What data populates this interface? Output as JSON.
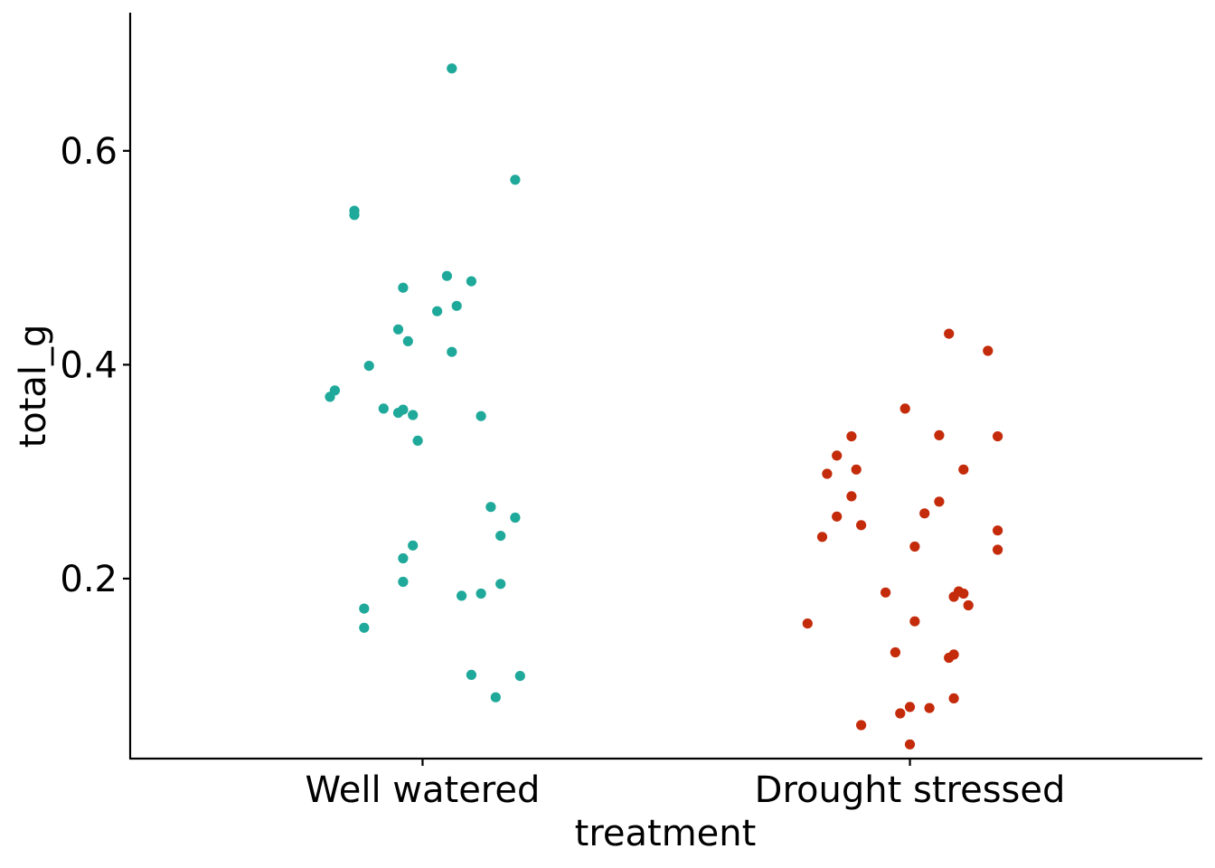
{
  "chart_data": {
    "type": "scatter",
    "title": "",
    "xlabel": "treatment",
    "ylabel": "total_g",
    "categories": [
      "Well watered",
      "Drought stressed"
    ],
    "ylim": [
      0.0317,
      0.7292
    ],
    "yticks": [
      0.2,
      0.4,
      0.6
    ],
    "ytick_labels": [
      "0.2",
      "0.4",
      "0.6"
    ],
    "grid": false,
    "legend": "none",
    "series": [
      {
        "name": "Well watered",
        "color": "#1FA99A",
        "points": [
          {
            "x": 1.06,
            "y": 0.677
          },
          {
            "x": 1.19,
            "y": 0.573
          },
          {
            "x": 0.86,
            "y": 0.544
          },
          {
            "x": 0.86,
            "y": 0.54
          },
          {
            "x": 1.05,
            "y": 0.483
          },
          {
            "x": 1.1,
            "y": 0.478
          },
          {
            "x": 0.96,
            "y": 0.472
          },
          {
            "x": 1.07,
            "y": 0.455
          },
          {
            "x": 1.03,
            "y": 0.45
          },
          {
            "x": 0.95,
            "y": 0.433
          },
          {
            "x": 0.97,
            "y": 0.422
          },
          {
            "x": 1.06,
            "y": 0.412
          },
          {
            "x": 0.89,
            "y": 0.399
          },
          {
            "x": 0.82,
            "y": 0.376
          },
          {
            "x": 0.81,
            "y": 0.37
          },
          {
            "x": 0.92,
            "y": 0.359
          },
          {
            "x": 0.96,
            "y": 0.358
          },
          {
            "x": 0.95,
            "y": 0.355
          },
          {
            "x": 0.98,
            "y": 0.353
          },
          {
            "x": 1.12,
            "y": 0.352
          },
          {
            "x": 0.99,
            "y": 0.329
          },
          {
            "x": 1.14,
            "y": 0.267
          },
          {
            "x": 1.19,
            "y": 0.257
          },
          {
            "x": 1.16,
            "y": 0.24
          },
          {
            "x": 0.98,
            "y": 0.231
          },
          {
            "x": 0.96,
            "y": 0.219
          },
          {
            "x": 0.96,
            "y": 0.197
          },
          {
            "x": 1.16,
            "y": 0.195
          },
          {
            "x": 1.12,
            "y": 0.186
          },
          {
            "x": 1.08,
            "y": 0.184
          },
          {
            "x": 0.88,
            "y": 0.172
          },
          {
            "x": 0.88,
            "y": 0.154
          },
          {
            "x": 1.1,
            "y": 0.11
          },
          {
            "x": 1.2,
            "y": 0.109
          },
          {
            "x": 1.15,
            "y": 0.089
          }
        ]
      },
      {
        "name": "Drought stressed",
        "color": "#C42B0B",
        "points": [
          {
            "x": 2.08,
            "y": 0.429
          },
          {
            "x": 2.16,
            "y": 0.413
          },
          {
            "x": 1.99,
            "y": 0.359
          },
          {
            "x": 2.06,
            "y": 0.334
          },
          {
            "x": 2.18,
            "y": 0.333
          },
          {
            "x": 1.88,
            "y": 0.333
          },
          {
            "x": 1.85,
            "y": 0.315
          },
          {
            "x": 2.11,
            "y": 0.302
          },
          {
            "x": 1.89,
            "y": 0.302
          },
          {
            "x": 1.83,
            "y": 0.298
          },
          {
            "x": 1.88,
            "y": 0.277
          },
          {
            "x": 2.06,
            "y": 0.272
          },
          {
            "x": 2.03,
            "y": 0.261
          },
          {
            "x": 1.85,
            "y": 0.258
          },
          {
            "x": 1.9,
            "y": 0.25
          },
          {
            "x": 2.18,
            "y": 0.245
          },
          {
            "x": 1.82,
            "y": 0.239
          },
          {
            "x": 2.01,
            "y": 0.23
          },
          {
            "x": 2.18,
            "y": 0.227
          },
          {
            "x": 2.1,
            "y": 0.188
          },
          {
            "x": 1.95,
            "y": 0.187
          },
          {
            "x": 2.11,
            "y": 0.186
          },
          {
            "x": 2.09,
            "y": 0.183
          },
          {
            "x": 2.12,
            "y": 0.175
          },
          {
            "x": 2.01,
            "y": 0.16
          },
          {
            "x": 1.79,
            "y": 0.158
          },
          {
            "x": 1.97,
            "y": 0.131
          },
          {
            "x": 2.09,
            "y": 0.129
          },
          {
            "x": 2.08,
            "y": 0.126
          },
          {
            "x": 2.09,
            "y": 0.088
          },
          {
            "x": 2.0,
            "y": 0.08
          },
          {
            "x": 2.04,
            "y": 0.079
          },
          {
            "x": 1.98,
            "y": 0.074
          },
          {
            "x": 1.9,
            "y": 0.063
          },
          {
            "x": 2.0,
            "y": 0.045
          }
        ]
      }
    ]
  }
}
